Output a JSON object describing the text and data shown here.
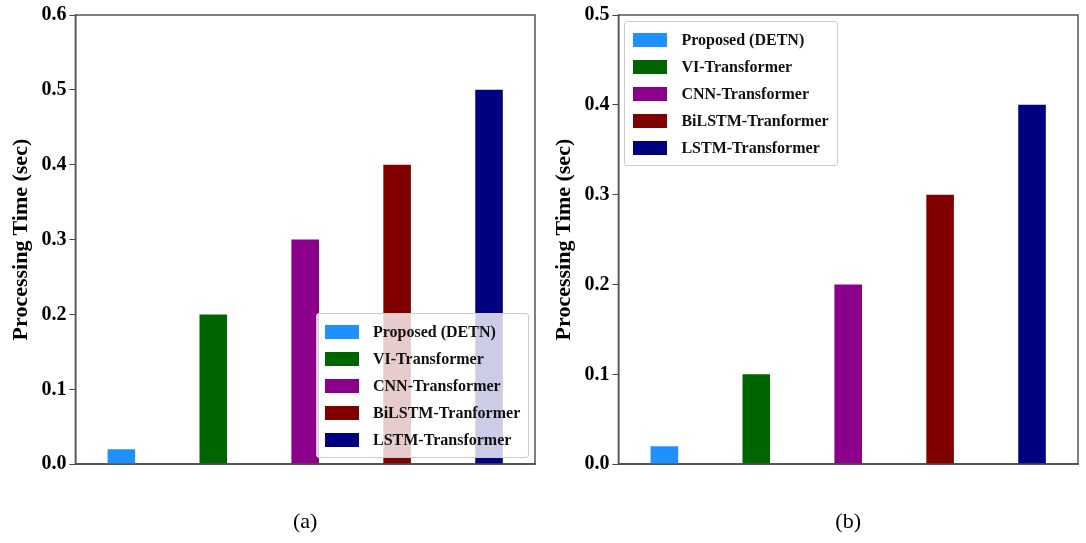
{
  "chart_data": [
    {
      "type": "bar",
      "categories": [
        null,
        null,
        null,
        null,
        null
      ],
      "ylabel": "Processing Time (sec)",
      "xlabel": "(a)",
      "ylim": [
        0,
        0.6
      ],
      "yticks": [
        {
          "value": 0,
          "label": "0.0"
        },
        0.1,
        0.2,
        0.3,
        0.4,
        0.5,
        0.6
      ],
      "legend": "bottom right",
      "grid": false,
      "series": [
        {
          "name": "Proposed (DETN)",
          "color": "#1e90ff",
          "values": [
            0.02,
            null,
            null,
            null,
            null
          ]
        },
        {
          "name": "VI-Transformer",
          "color": "#006400",
          "values": [
            null,
            0.2,
            null,
            null,
            null
          ]
        },
        {
          "name": "CNN-Transformer",
          "color": "#8b008b",
          "values": [
            null,
            null,
            0.3,
            null,
            null
          ]
        },
        {
          "name": "BiLSTM-Tranformer",
          "color": "#800000",
          "values": [
            null,
            null,
            null,
            0.4,
            null
          ]
        },
        {
          "name": "LSTM-Transformer",
          "color": "#000080",
          "values": [
            null,
            null,
            null,
            null,
            0.5
          ]
        }
      ]
    },
    {
      "type": "bar",
      "categories": [
        null,
        null,
        null,
        null,
        null
      ],
      "ylabel": "Processing Time (sec)",
      "xlabel": "(b)",
      "ylim": [
        0,
        0.5
      ],
      "yticks": [
        {
          "value": 0,
          "label": "0.0"
        },
        0.1,
        0.2,
        0.3,
        0.4,
        0.5
      ],
      "legend": "top left",
      "grid": false,
      "series": [
        {
          "name": "Proposed (DETN)",
          "color": "#1e90ff",
          "values": [
            0.02,
            null,
            null,
            null,
            null
          ]
        },
        {
          "name": "VI-Transformer",
          "color": "#006400",
          "values": [
            null,
            0.1,
            null,
            null,
            null
          ]
        },
        {
          "name": "CNN-Transformer",
          "color": "#8b008b",
          "values": [
            null,
            null,
            0.2,
            null,
            null
          ]
        },
        {
          "name": "BiLSTM-Tranformer",
          "color": "#800000",
          "values": [
            null,
            null,
            null,
            0.3,
            null
          ]
        },
        {
          "name": "LSTM-Transformer",
          "color": "#000080",
          "values": [
            null,
            null,
            null,
            null,
            0.4
          ]
        }
      ]
    }
  ]
}
